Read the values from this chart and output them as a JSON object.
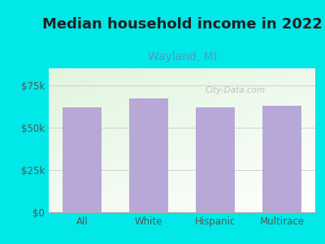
{
  "title": "Median household income in 2022",
  "subtitle": "Wayland, MI",
  "categories": [
    "All",
    "White",
    "Hispanic",
    "Multirace"
  ],
  "values": [
    62000,
    67000,
    62000,
    63000
  ],
  "bar_color": "#b8a8d8",
  "title_fontsize": 13,
  "subtitle_fontsize": 10,
  "subtitle_color": "#5599bb",
  "title_color": "#222222",
  "bg_outer": "#00e8e8",
  "yticks": [
    0,
    25000,
    50000,
    75000
  ],
  "ytick_labels": [
    "$0",
    "$25k",
    "$50k",
    "$75k"
  ],
  "ylim": [
    0,
    85000
  ],
  "watermark": "City-Data.com"
}
